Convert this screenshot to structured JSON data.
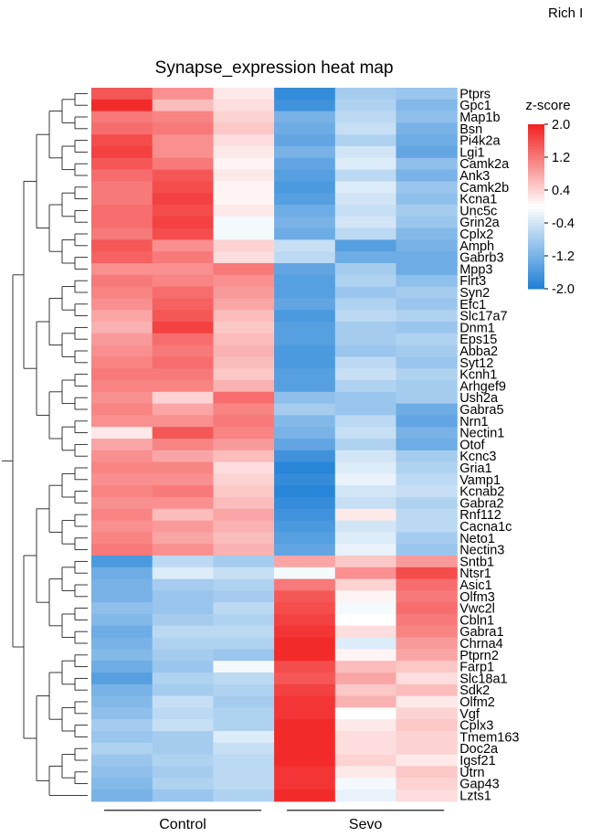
{
  "corner_text": "Rich I",
  "chart_data": {
    "type": "heatmap",
    "title": "Synapse_expression heat map",
    "groups": [
      {
        "name": "Control",
        "columns": 3
      },
      {
        "name": "Sevo",
        "columns": 3
      }
    ],
    "rows": [
      "Ptprs",
      "Gpc1",
      "Map1b",
      "Bsn",
      "Pi4k2a",
      "Lgi1",
      "Camk2a",
      "Ank3",
      "Camk2b",
      "Kcna1",
      "Unc5c",
      "Grin2a",
      "Cplx2",
      "Amph",
      "Gabrb3",
      "Mpp3",
      "Flrt3",
      "Syn2",
      "Efc1",
      "Slc17a7",
      "Dnm1",
      "Eps15",
      "Abba2",
      "Syt12",
      "Kcnh1",
      "Arhgef9",
      "Ush2a",
      "Gabra5",
      "Nrn1",
      "Nectin1",
      "Otof",
      "Kcnc3",
      "Gria1",
      "Vamp1",
      "Kcnab2",
      "Gabra2",
      "Rnf112",
      "Cacna1c",
      "Neto1",
      "Nectin3",
      "Sntb1",
      "Ntsr1",
      "Asic1",
      "Olfm3",
      "Vwc2l",
      "Cbln1",
      "Gabra1",
      "Chrna4",
      "Ptprn2",
      "Farp1",
      "Slc18a1",
      "Sdk2",
      "Olfm2",
      "Vgf",
      "Cplx3",
      "Tmem163",
      "Doc2a",
      "Igsf21",
      "Utrn",
      "Gap43",
      "Lzts1"
    ],
    "values": [
      [
        1.5,
        1.0,
        0.2,
        -1.8,
        -0.8,
        -0.9
      ],
      [
        1.9,
        0.6,
        0.3,
        -1.7,
        -0.7,
        -1.1
      ],
      [
        1.2,
        1.1,
        0.4,
        -1.2,
        -0.6,
        -1.0
      ],
      [
        1.3,
        1.2,
        0.5,
        -1.3,
        -0.5,
        -1.2
      ],
      [
        1.6,
        1.0,
        0.3,
        -1.4,
        -0.7,
        -1.3
      ],
      [
        1.7,
        1.0,
        0.2,
        -1.2,
        -0.4,
        -1.4
      ],
      [
        1.5,
        1.2,
        0.1,
        -1.4,
        -0.3,
        -1.0
      ],
      [
        1.3,
        1.5,
        0.2,
        -1.5,
        -0.6,
        -1.2
      ],
      [
        1.2,
        1.6,
        0.1,
        -1.6,
        -0.3,
        -0.9
      ],
      [
        1.2,
        1.7,
        0.1,
        -1.5,
        -0.4,
        -1.0
      ],
      [
        1.3,
        1.6,
        0.2,
        -1.3,
        -0.5,
        -0.8
      ],
      [
        1.3,
        1.7,
        -0.1,
        -1.2,
        -0.4,
        -0.9
      ],
      [
        1.2,
        1.6,
        -0.1,
        -1.3,
        -0.6,
        -1.1
      ],
      [
        1.5,
        1.0,
        0.4,
        -0.5,
        -1.5,
        -1.2
      ],
      [
        1.4,
        1.2,
        0.3,
        -0.6,
        -1.3,
        -1.3
      ],
      [
        1.0,
        1.0,
        1.2,
        -1.4,
        -0.8,
        -1.3
      ],
      [
        1.2,
        1.1,
        1.0,
        -1.5,
        -0.7,
        -1.0
      ],
      [
        1.1,
        1.3,
        0.9,
        -1.5,
        -0.9,
        -0.8
      ],
      [
        1.0,
        1.4,
        0.8,
        -1.4,
        -0.7,
        -0.9
      ],
      [
        0.8,
        1.5,
        0.6,
        -1.6,
        -0.6,
        -0.7
      ],
      [
        0.7,
        1.7,
        0.5,
        -1.5,
        -0.8,
        -0.9
      ],
      [
        0.9,
        1.3,
        0.6,
        -1.5,
        -0.8,
        -0.7
      ],
      [
        1.0,
        1.2,
        0.7,
        -1.6,
        -0.9,
        -0.8
      ],
      [
        1.1,
        1.3,
        0.6,
        -1.6,
        -0.6,
        -0.9
      ],
      [
        1.2,
        1.2,
        0.5,
        -1.5,
        -0.5,
        -0.7
      ],
      [
        1.1,
        1.1,
        0.7,
        -1.5,
        -0.7,
        -0.8
      ],
      [
        1.0,
        0.4,
        1.3,
        -1.0,
        -0.9,
        -0.8
      ],
      [
        1.1,
        0.8,
        1.1,
        -0.8,
        -0.9,
        -1.3
      ],
      [
        1.0,
        1.0,
        1.2,
        -1.1,
        -0.6,
        -1.4
      ],
      [
        0.2,
        1.5,
        1.1,
        -1.2,
        -0.5,
        -1.2
      ],
      [
        0.8,
        1.1,
        0.9,
        -1.4,
        -0.7,
        -1.3
      ],
      [
        1.0,
        0.8,
        0.6,
        -1.7,
        -0.4,
        -0.8
      ],
      [
        1.1,
        1.1,
        0.3,
        -1.9,
        -0.3,
        -0.7
      ],
      [
        1.0,
        1.0,
        0.4,
        -1.8,
        -0.2,
        -0.6
      ],
      [
        1.1,
        1.2,
        0.5,
        -1.9,
        -0.4,
        -0.5
      ],
      [
        1.0,
        1.0,
        0.6,
        -1.8,
        -0.5,
        -0.7
      ],
      [
        1.1,
        0.6,
        0.8,
        -1.7,
        0.2,
        -0.6
      ],
      [
        1.0,
        0.9,
        0.7,
        -1.6,
        -0.4,
        -0.6
      ],
      [
        1.1,
        0.8,
        0.6,
        -1.5,
        -0.3,
        -0.8
      ],
      [
        1.2,
        1.0,
        0.7,
        -1.4,
        -0.2,
        -0.9
      ],
      [
        -1.6,
        -0.6,
        -0.8,
        0.8,
        0.5,
        0.9
      ],
      [
        -1.3,
        -0.3,
        -0.5,
        -0.1,
        1.0,
        1.6
      ],
      [
        -1.2,
        -0.8,
        -0.7,
        1.2,
        0.4,
        1.3
      ],
      [
        -1.2,
        -0.9,
        -0.8,
        1.5,
        0.1,
        1.2
      ],
      [
        -1.0,
        -0.9,
        -0.6,
        1.6,
        -0.1,
        1.3
      ],
      [
        -1.1,
        -0.8,
        -0.7,
        1.7,
        0.0,
        1.2
      ],
      [
        -1.3,
        -0.6,
        -0.6,
        1.8,
        0.3,
        1.1
      ],
      [
        -1.2,
        -0.7,
        -0.7,
        1.9,
        -0.3,
        0.9
      ],
      [
        -1.1,
        -0.8,
        -0.9,
        1.9,
        0.1,
        0.8
      ],
      [
        -1.3,
        -0.9,
        -0.1,
        1.6,
        0.6,
        0.5
      ],
      [
        -1.5,
        -0.7,
        -0.6,
        1.5,
        0.8,
        0.3
      ],
      [
        -1.2,
        -0.8,
        -0.7,
        1.7,
        0.5,
        0.6
      ],
      [
        -1.1,
        -0.5,
        -0.8,
        1.8,
        0.7,
        0.2
      ],
      [
        -1.0,
        -0.6,
        -0.7,
        1.8,
        0.0,
        0.4
      ],
      [
        -0.8,
        -0.5,
        -0.7,
        1.9,
        0.2,
        0.5
      ],
      [
        -0.9,
        -0.8,
        -0.3,
        1.9,
        0.3,
        0.4
      ],
      [
        -0.7,
        -0.8,
        -0.5,
        1.9,
        0.3,
        0.4
      ],
      [
        -0.9,
        -0.7,
        -0.6,
        1.9,
        0.4,
        0.2
      ],
      [
        -1.0,
        -0.8,
        -0.6,
        1.8,
        0.2,
        0.5
      ],
      [
        -1.1,
        -0.7,
        -0.6,
        1.8,
        -0.1,
        0.4
      ],
      [
        -1.2,
        -0.9,
        -0.7,
        1.9,
        -0.2,
        0.3
      ]
    ],
    "legend": {
      "title": "z-score",
      "ticks": [
        "2.0",
        "1.2",
        "0.4",
        "-0.4",
        "-1.2",
        "-2.0"
      ],
      "range": [
        -2,
        2
      ],
      "colors": {
        "low": "#1e7fd6",
        "mid": "#ffffff",
        "high": "#f21f1f"
      },
      "placement": "top-right"
    },
    "dendrogram": "rows"
  }
}
